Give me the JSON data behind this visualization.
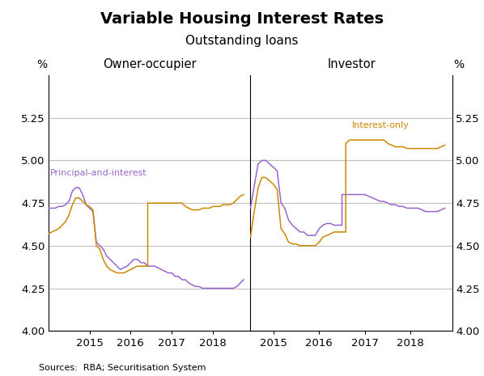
{
  "title": "Variable Housing Interest Rates",
  "subtitle": "Outstanding loans",
  "source": "Sources:  RBA; Securitisation System",
  "ylim": [
    4.0,
    5.5
  ],
  "yticks": [
    4.0,
    4.25,
    4.5,
    4.75,
    5.0,
    5.25
  ],
  "panel_labels": [
    "Owner-occupier",
    "Investor"
  ],
  "ylabel_left": "%",
  "ylabel_right": "%",
  "line_colors": {
    "principal": "#9966CC",
    "interest_only": "#CC8800"
  },
  "label_principal": "Principal-and-interest",
  "label_interest_only": "Interest-only",
  "owner_occupier": {
    "dates_principal": [
      2014.0,
      2014.083,
      2014.167,
      2014.25,
      2014.333,
      2014.417,
      2014.5,
      2014.583,
      2014.667,
      2014.75,
      2014.833,
      2014.917,
      2015.0,
      2015.083,
      2015.167,
      2015.25,
      2015.333,
      2015.417,
      2015.5,
      2015.583,
      2015.667,
      2015.75,
      2015.833,
      2015.917,
      2016.0,
      2016.083,
      2016.167,
      2016.25,
      2016.333,
      2016.417,
      2016.5,
      2016.583,
      2016.667,
      2016.75,
      2016.833,
      2016.917,
      2017.0,
      2017.083,
      2017.167,
      2017.25,
      2017.333,
      2017.417,
      2017.5,
      2017.583,
      2017.667,
      2017.75,
      2017.833,
      2017.917,
      2018.0,
      2018.083,
      2018.167,
      2018.25,
      2018.333,
      2018.417,
      2018.5,
      2018.583,
      2018.667,
      2018.75
    ],
    "values_principal": [
      4.72,
      4.72,
      4.72,
      4.73,
      4.73,
      4.74,
      4.76,
      4.82,
      4.84,
      4.84,
      4.8,
      4.74,
      4.72,
      4.7,
      4.52,
      4.5,
      4.48,
      4.44,
      4.42,
      4.4,
      4.38,
      4.36,
      4.37,
      4.38,
      4.4,
      4.42,
      4.42,
      4.4,
      4.4,
      4.38,
      4.38,
      4.38,
      4.37,
      4.36,
      4.35,
      4.34,
      4.34,
      4.32,
      4.32,
      4.3,
      4.3,
      4.28,
      4.27,
      4.26,
      4.26,
      4.25,
      4.25,
      4.25,
      4.25,
      4.25,
      4.25,
      4.25,
      4.25,
      4.25,
      4.25,
      4.26,
      4.28,
      4.3
    ],
    "dates_interest_only": [
      2014.0,
      2014.083,
      2014.167,
      2014.25,
      2014.333,
      2014.417,
      2014.5,
      2014.583,
      2014.667,
      2014.75,
      2014.833,
      2014.917,
      2015.0,
      2015.083,
      2015.167,
      2015.25,
      2015.333,
      2015.417,
      2015.5,
      2015.583,
      2015.667,
      2015.75,
      2015.833,
      2015.917,
      2016.0,
      2016.083,
      2016.167,
      2016.25,
      2016.333,
      2016.417,
      2016.417,
      2016.5,
      2016.583,
      2016.667,
      2016.75,
      2016.833,
      2016.917,
      2017.0,
      2017.083,
      2017.167,
      2017.25,
      2017.333,
      2017.417,
      2017.5,
      2017.583,
      2017.667,
      2017.75,
      2017.833,
      2017.917,
      2018.0,
      2018.083,
      2018.167,
      2018.25,
      2018.333,
      2018.417,
      2018.5,
      2018.583,
      2018.667,
      2018.75
    ],
    "values_interest_only": [
      4.57,
      4.58,
      4.59,
      4.6,
      4.62,
      4.64,
      4.68,
      4.74,
      4.78,
      4.78,
      4.76,
      4.74,
      4.73,
      4.71,
      4.5,
      4.48,
      4.42,
      4.38,
      4.36,
      4.35,
      4.34,
      4.34,
      4.34,
      4.35,
      4.36,
      4.37,
      4.38,
      4.38,
      4.38,
      4.38,
      4.75,
      4.75,
      4.75,
      4.75,
      4.75,
      4.75,
      4.75,
      4.75,
      4.75,
      4.75,
      4.75,
      4.73,
      4.72,
      4.71,
      4.71,
      4.71,
      4.72,
      4.72,
      4.72,
      4.73,
      4.73,
      4.73,
      4.74,
      4.74,
      4.74,
      4.75,
      4.77,
      4.79,
      4.8
    ]
  },
  "investor": {
    "dates_principal": [
      2014.5,
      2014.583,
      2014.667,
      2014.75,
      2014.833,
      2014.917,
      2015.0,
      2015.083,
      2015.167,
      2015.25,
      2015.333,
      2015.417,
      2015.5,
      2015.583,
      2015.667,
      2015.75,
      2015.833,
      2015.917,
      2016.0,
      2016.083,
      2016.167,
      2016.25,
      2016.333,
      2016.417,
      2016.5,
      2016.5,
      2016.583,
      2016.667,
      2016.75,
      2016.833,
      2016.917,
      2017.0,
      2017.083,
      2017.167,
      2017.25,
      2017.333,
      2017.417,
      2017.5,
      2017.583,
      2017.667,
      2017.75,
      2017.833,
      2017.917,
      2018.0,
      2018.083,
      2018.167,
      2018.25,
      2018.333,
      2018.417,
      2018.5,
      2018.583,
      2018.667,
      2018.75
    ],
    "values_principal": [
      4.72,
      4.85,
      4.98,
      5.0,
      5.0,
      4.98,
      4.96,
      4.94,
      4.75,
      4.72,
      4.65,
      4.62,
      4.6,
      4.58,
      4.58,
      4.56,
      4.56,
      4.56,
      4.6,
      4.62,
      4.63,
      4.63,
      4.62,
      4.62,
      4.62,
      4.8,
      4.8,
      4.8,
      4.8,
      4.8,
      4.8,
      4.8,
      4.79,
      4.78,
      4.77,
      4.76,
      4.76,
      4.75,
      4.74,
      4.74,
      4.73,
      4.73,
      4.72,
      4.72,
      4.72,
      4.72,
      4.71,
      4.7,
      4.7,
      4.7,
      4.7,
      4.71,
      4.72
    ],
    "dates_interest_only": [
      2014.5,
      2014.583,
      2014.667,
      2014.75,
      2014.833,
      2014.917,
      2015.0,
      2015.083,
      2015.167,
      2015.25,
      2015.333,
      2015.417,
      2015.5,
      2015.583,
      2015.667,
      2015.75,
      2015.833,
      2015.917,
      2016.0,
      2016.083,
      2016.167,
      2016.25,
      2016.333,
      2016.417,
      2016.5,
      2016.583,
      2016.583,
      2016.667,
      2016.75,
      2016.833,
      2016.917,
      2017.0,
      2017.083,
      2017.167,
      2017.25,
      2017.333,
      2017.417,
      2017.5,
      2017.583,
      2017.667,
      2017.75,
      2017.833,
      2017.917,
      2018.0,
      2018.083,
      2018.167,
      2018.25,
      2018.333,
      2018.417,
      2018.5,
      2018.583,
      2018.667,
      2018.75
    ],
    "values_interest_only": [
      4.55,
      4.7,
      4.84,
      4.9,
      4.9,
      4.88,
      4.86,
      4.83,
      4.6,
      4.57,
      4.52,
      4.51,
      4.51,
      4.5,
      4.5,
      4.5,
      4.5,
      4.5,
      4.52,
      4.55,
      4.56,
      4.57,
      4.58,
      4.58,
      4.58,
      4.58,
      5.1,
      5.12,
      5.12,
      5.12,
      5.12,
      5.12,
      5.12,
      5.12,
      5.12,
      5.12,
      5.12,
      5.1,
      5.09,
      5.08,
      5.08,
      5.08,
      5.07,
      5.07,
      5.07,
      5.07,
      5.07,
      5.07,
      5.07,
      5.07,
      5.07,
      5.08,
      5.09
    ]
  },
  "xticks_left": [
    2015,
    2016,
    2017,
    2018
  ],
  "xticks_right": [
    2015,
    2016,
    2017,
    2018
  ],
  "xlim_left": [
    2014.0,
    2018.917
  ],
  "xlim_right": [
    2014.5,
    2018.917
  ],
  "background_color": "#ffffff",
  "grid_color": "#c0c0c0",
  "title_fontsize": 14,
  "subtitle_fontsize": 11
}
